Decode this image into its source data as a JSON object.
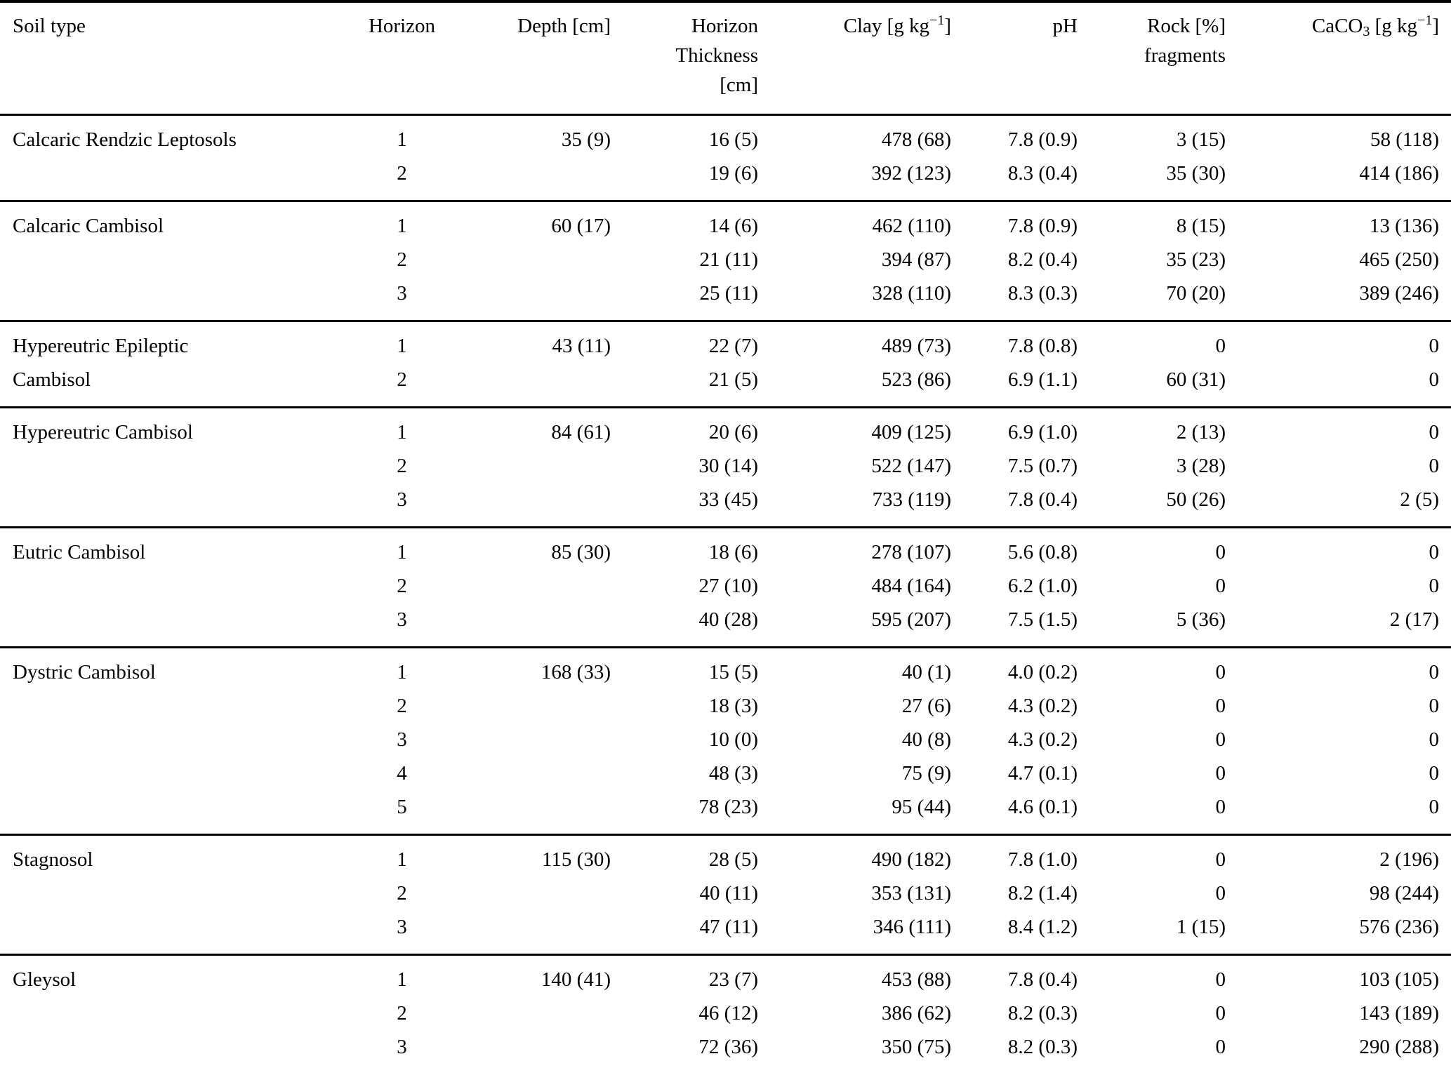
{
  "table": {
    "header": {
      "soil_type": "Soil type",
      "horizon": "Horizon",
      "depth": "Depth [cm]",
      "thickness_lines": [
        "Horizon",
        "Thickness",
        "[cm]"
      ],
      "clay": {
        "prefix": "Clay [g kg",
        "sup": "−1",
        "suffix": "]"
      },
      "ph": "pH",
      "rock_lines": [
        "Rock [%]",
        "fragments"
      ],
      "caco3": {
        "prefix": "CaCO",
        "sub": "3",
        "mid": " [g kg",
        "sup": "−1",
        "suffix": "]"
      }
    },
    "blocks": [
      {
        "soil_type_lines": [
          "Calcaric Rendzic Leptosols"
        ],
        "depth": "35 (9)",
        "rows": [
          {
            "horizon": "1",
            "thickness": "16 (5)",
            "clay": "478 (68)",
            "ph": "7.8 (0.9)",
            "rock": "3 (15)",
            "caco3": "58 (118)"
          },
          {
            "horizon": "2",
            "thickness": "19 (6)",
            "clay": "392 (123)",
            "ph": "8.3 (0.4)",
            "rock": "35 (30)",
            "caco3": "414 (186)"
          }
        ]
      },
      {
        "soil_type_lines": [
          "Calcaric Cambisol"
        ],
        "depth": "60 (17)",
        "rows": [
          {
            "horizon": "1",
            "thickness": "14 (6)",
            "clay": "462 (110)",
            "ph": "7.8 (0.9)",
            "rock": "8 (15)",
            "caco3": "13 (136)"
          },
          {
            "horizon": "2",
            "thickness": "21 (11)",
            "clay": "394 (87)",
            "ph": "8.2 (0.4)",
            "rock": "35 (23)",
            "caco3": "465 (250)"
          },
          {
            "horizon": "3",
            "thickness": "25 (11)",
            "clay": "328 (110)",
            "ph": "8.3 (0.3)",
            "rock": "70 (20)",
            "caco3": "389 (246)"
          }
        ]
      },
      {
        "soil_type_lines": [
          "Hypereutric Epileptic",
          "Cambisol"
        ],
        "depth": "43 (11)",
        "rows": [
          {
            "horizon": "1",
            "thickness": "22 (7)",
            "clay": "489 (73)",
            "ph": "7.8 (0.8)",
            "rock": "0",
            "caco3": "0"
          },
          {
            "horizon": "2",
            "thickness": "21 (5)",
            "clay": "523 (86)",
            "ph": "6.9 (1.1)",
            "rock": "60 (31)",
            "caco3": "0"
          }
        ]
      },
      {
        "soil_type_lines": [
          "Hypereutric Cambisol"
        ],
        "depth": "84 (61)",
        "rows": [
          {
            "horizon": "1",
            "thickness": "20 (6)",
            "clay": "409 (125)",
            "ph": "6.9 (1.0)",
            "rock": "2 (13)",
            "caco3": "0"
          },
          {
            "horizon": "2",
            "thickness": "30 (14)",
            "clay": "522 (147)",
            "ph": "7.5 (0.7)",
            "rock": "3 (28)",
            "caco3": "0"
          },
          {
            "horizon": "3",
            "thickness": "33 (45)",
            "clay": "733 (119)",
            "ph": "7.8 (0.4)",
            "rock": "50 (26)",
            "caco3": "2 (5)"
          }
        ]
      },
      {
        "soil_type_lines": [
          "Eutric Cambisol"
        ],
        "depth": "85 (30)",
        "rows": [
          {
            "horizon": "1",
            "thickness": "18 (6)",
            "clay": "278 (107)",
            "ph": "5.6 (0.8)",
            "rock": "0",
            "caco3": "0"
          },
          {
            "horizon": "2",
            "thickness": "27 (10)",
            "clay": "484 (164)",
            "ph": "6.2 (1.0)",
            "rock": "0",
            "caco3": "0"
          },
          {
            "horizon": "3",
            "thickness": "40 (28)",
            "clay": "595 (207)",
            "ph": "7.5 (1.5)",
            "rock": "5 (36)",
            "caco3": "2 (17)"
          }
        ]
      },
      {
        "soil_type_lines": [
          "Dystric Cambisol"
        ],
        "depth": "168 (33)",
        "rows": [
          {
            "horizon": "1",
            "thickness": "15 (5)",
            "clay": "40 (1)",
            "ph": "4.0 (0.2)",
            "rock": "0",
            "caco3": "0"
          },
          {
            "horizon": "2",
            "thickness": "18 (3)",
            "clay": "27 (6)",
            "ph": "4.3 (0.2)",
            "rock": "0",
            "caco3": "0"
          },
          {
            "horizon": "3",
            "thickness": "10 (0)",
            "clay": "40 (8)",
            "ph": "4.3 (0.2)",
            "rock": "0",
            "caco3": "0"
          },
          {
            "horizon": "4",
            "thickness": "48 (3)",
            "clay": "75 (9)",
            "ph": "4.7 (0.1)",
            "rock": "0",
            "caco3": "0"
          },
          {
            "horizon": "5",
            "thickness": "78 (23)",
            "clay": "95 (44)",
            "ph": "4.6 (0.1)",
            "rock": "0",
            "caco3": "0"
          }
        ]
      },
      {
        "soil_type_lines": [
          "Stagnosol"
        ],
        "depth": "115 (30)",
        "rows": [
          {
            "horizon": "1",
            "thickness": "28 (5)",
            "clay": "490 (182)",
            "ph": "7.8 (1.0)",
            "rock": "0",
            "caco3": "2 (196)"
          },
          {
            "horizon": "2",
            "thickness": "40 (11)",
            "clay": "353 (131)",
            "ph": "8.2 (1.4)",
            "rock": "0",
            "caco3": "98 (244)"
          },
          {
            "horizon": "3",
            "thickness": "47 (11)",
            "clay": "346 (111)",
            "ph": "8.4 (1.2)",
            "rock": "1 (15)",
            "caco3": "576 (236)"
          }
        ]
      },
      {
        "soil_type_lines": [
          "Gleysol"
        ],
        "depth": "140 (41)",
        "rows": [
          {
            "horizon": "1",
            "thickness": "23 (7)",
            "clay": "453 (88)",
            "ph": "7.8 (0.4)",
            "rock": "0",
            "caco3": "103 (105)"
          },
          {
            "horizon": "2",
            "thickness": "46 (12)",
            "clay": "386 (62)",
            "ph": "8.2 (0.3)",
            "rock": "0",
            "caco3": "143 (189)"
          },
          {
            "horizon": "3",
            "thickness": "72 (36)",
            "clay": "350 (75)",
            "ph": "8.2 (0.3)",
            "rock": "0",
            "caco3": "290 (288)"
          }
        ]
      }
    ]
  }
}
